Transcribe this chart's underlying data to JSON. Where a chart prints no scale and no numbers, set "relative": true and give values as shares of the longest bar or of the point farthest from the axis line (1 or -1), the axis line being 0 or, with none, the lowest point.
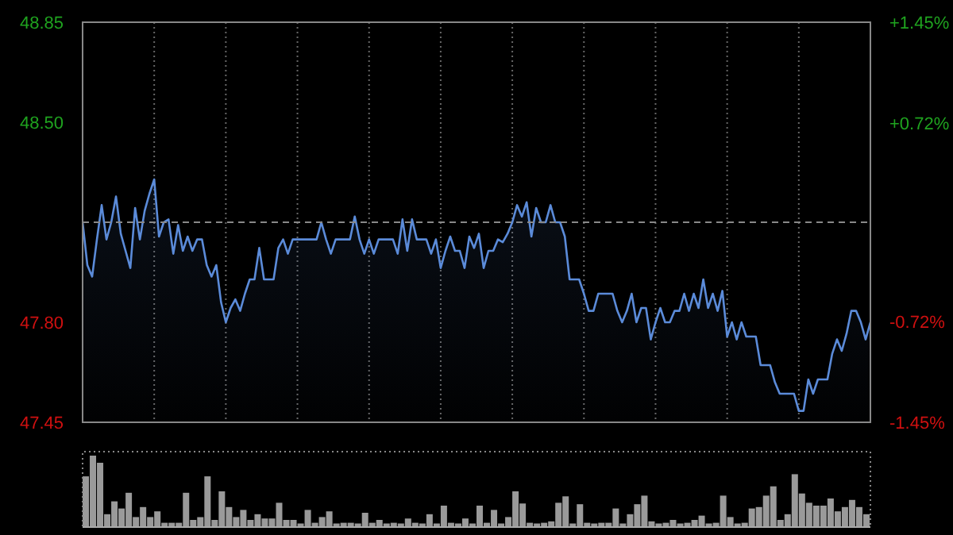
{
  "chart_data": [
    {
      "type": "area",
      "categories": [
        null,
        null,
        null,
        null,
        null,
        null,
        null,
        null,
        null,
        null,
        null,
        null,
        null,
        null,
        null,
        null,
        null,
        null,
        null,
        null,
        null,
        null,
        null,
        null,
        null,
        null,
        null,
        null,
        null,
        null,
        null,
        null,
        null,
        null,
        null,
        null,
        null,
        null,
        null,
        null,
        null,
        null,
        null,
        null,
        null,
        null,
        null,
        null,
        null,
        null,
        null,
        null,
        null,
        null,
        null,
        null,
        null,
        null,
        null,
        null,
        null,
        null,
        null,
        null,
        null,
        null,
        null,
        null,
        null,
        null,
        null,
        null,
        null,
        null,
        null,
        null,
        null,
        null,
        null,
        null,
        null,
        null,
        null,
        null,
        null,
        null,
        null,
        null,
        null,
        null,
        null,
        null,
        null,
        null,
        null,
        null,
        null,
        null,
        null,
        null,
        null,
        null,
        null,
        null,
        null,
        null,
        null,
        null,
        null,
        null,
        null,
        null,
        null,
        null,
        null,
        null,
        null,
        null,
        null,
        null,
        null,
        null,
        null,
        null,
        null,
        null,
        null,
        null,
        null,
        null,
        null,
        null,
        null,
        null,
        null,
        null,
        null,
        null,
        null,
        null,
        null,
        null,
        null,
        null,
        null,
        null,
        null,
        null,
        null,
        null,
        null,
        null,
        null,
        null,
        null,
        null,
        null,
        null,
        null,
        null,
        null,
        null,
        null,
        null,
        null,
        null
      ],
      "ylim": [
        47.45,
        48.85
      ],
      "yticks": [
        {
          "value": 47.45,
          "label": "47.45"
        },
        {
          "value": 47.8,
          "label": "47.80"
        },
        {
          "value": 48.5,
          "label": "48.50"
        },
        {
          "value": 48.85,
          "label": "48.85"
        }
      ],
      "y2lim": [
        -1.45,
        1.45
      ],
      "y2ticks": [
        {
          "value": -1.45,
          "label": "-1.45%"
        },
        {
          "value": -0.72,
          "label": "-0.72%"
        },
        {
          "value": 0.72,
          "label": "+0.72%"
        },
        {
          "value": 1.45,
          "label": "+1.45%"
        }
      ],
      "grid": true,
      "ref_lines": [
        {
          "axis": "y",
          "value": 48.15,
          "line_style": "dashed",
          "color": "#888888"
        }
      ],
      "series": [
        {
          "color": "#5b8bd9",
          "values": [
            48.15,
            48.0,
            47.96,
            48.09,
            48.21,
            48.09,
            48.15,
            48.24,
            48.11,
            48.05,
            47.99,
            48.2,
            48.09,
            48.19,
            48.25,
            48.3,
            48.1,
            48.15,
            48.16,
            48.04,
            48.14,
            48.05,
            48.1,
            48.05,
            48.09,
            48.09,
            48.0,
            47.96,
            48.0,
            47.87,
            47.8,
            47.85,
            47.88,
            47.84,
            47.9,
            47.95,
            47.95,
            48.06,
            47.95,
            47.95,
            47.95,
            48.06,
            48.09,
            48.04,
            48.09,
            48.09,
            48.09,
            48.09,
            48.09,
            48.09,
            48.15,
            48.09,
            48.04,
            48.09,
            48.09,
            48.09,
            48.09,
            48.17,
            48.09,
            48.04,
            48.09,
            48.04,
            48.09,
            48.09,
            48.09,
            48.09,
            48.04,
            48.16,
            48.05,
            48.16,
            48.09,
            48.09,
            48.09,
            48.04,
            48.09,
            47.99,
            48.05,
            48.1,
            48.05,
            48.05,
            47.99,
            48.1,
            48.06,
            48.11,
            47.99,
            48.05,
            48.05,
            48.09,
            48.08,
            48.11,
            48.15,
            48.21,
            48.17,
            48.22,
            48.1,
            48.2,
            48.15,
            48.15,
            48.21,
            48.15,
            48.15,
            48.1,
            47.95,
            47.95,
            47.95,
            47.9,
            47.84,
            47.84,
            47.9,
            47.9,
            47.9,
            47.9,
            47.84,
            47.8,
            47.84,
            47.9,
            47.8,
            47.85,
            47.85,
            47.74,
            47.8,
            47.85,
            47.8,
            47.8,
            47.84,
            47.84,
            47.9,
            47.84,
            47.9,
            47.85,
            47.95,
            47.85,
            47.9,
            47.84,
            47.91,
            47.75,
            47.8,
            47.74,
            47.8,
            47.75,
            47.75,
            47.75,
            47.65,
            47.65,
            47.65,
            47.59,
            47.55,
            47.55,
            47.55,
            47.55,
            47.49,
            47.49,
            47.6,
            47.55,
            47.6,
            47.6,
            47.6,
            47.69,
            47.74,
            47.7,
            47.76,
            47.84,
            47.84,
            47.8,
            47.74,
            47.8
          ]
        }
      ]
    },
    {
      "type": "bar",
      "relative": true,
      "categories": [
        null,
        null,
        null,
        null,
        null,
        null,
        null,
        null,
        null,
        null,
        null,
        null,
        null,
        null,
        null,
        null,
        null,
        null,
        null,
        null,
        null,
        null,
        null,
        null,
        null,
        null,
        null,
        null,
        null,
        null,
        null,
        null,
        null,
        null,
        null,
        null,
        null,
        null,
        null,
        null,
        null,
        null,
        null,
        null,
        null,
        null,
        null,
        null,
        null,
        null,
        null,
        null,
        null,
        null,
        null,
        null,
        null,
        null,
        null,
        null,
        null,
        null,
        null,
        null,
        null,
        null,
        null,
        null,
        null,
        null,
        null,
        null,
        null,
        null,
        null,
        null,
        null,
        null,
        null,
        null,
        null,
        null,
        null,
        null,
        null,
        null,
        null,
        null,
        null,
        null,
        null,
        null,
        null,
        null,
        null,
        null,
        null,
        null,
        null,
        null,
        null,
        null,
        null,
        null,
        null,
        null,
        null,
        null,
        null,
        null
      ],
      "color": "#9a9a9a",
      "values": [
        0.71,
        1.0,
        0.9,
        0.18,
        0.36,
        0.26,
        0.48,
        0.14,
        0.28,
        0.14,
        0.22,
        0.06,
        0.06,
        0.06,
        0.48,
        0.1,
        0.14,
        0.71,
        0.1,
        0.5,
        0.28,
        0.14,
        0.24,
        0.1,
        0.18,
        0.12,
        0.12,
        0.34,
        0.1,
        0.1,
        0.05,
        0.24,
        0.06,
        0.14,
        0.22,
        0.05,
        0.06,
        0.06,
        0.05,
        0.2,
        0.06,
        0.1,
        0.05,
        0.06,
        0.05,
        0.12,
        0.06,
        0.05,
        0.18,
        0.05,
        0.3,
        0.06,
        0.05,
        0.12,
        0.05,
        0.3,
        0.06,
        0.24,
        0.05,
        0.14,
        0.5,
        0.33,
        0.06,
        0.05,
        0.06,
        0.08,
        0.34,
        0.43,
        0.05,
        0.32,
        0.06,
        0.05,
        0.06,
        0.06,
        0.26,
        0.05,
        0.18,
        0.32,
        0.44,
        0.08,
        0.05,
        0.06,
        0.1,
        0.05,
        0.06,
        0.1,
        0.16,
        0.05,
        0.06,
        0.44,
        0.14,
        0.05,
        0.06,
        0.26,
        0.28,
        0.44,
        0.57,
        0.1,
        0.18,
        0.74,
        0.47,
        0.34,
        0.3,
        0.3,
        0.4,
        0.22,
        0.28,
        0.38,
        0.28,
        0.18
      ]
    }
  ]
}
